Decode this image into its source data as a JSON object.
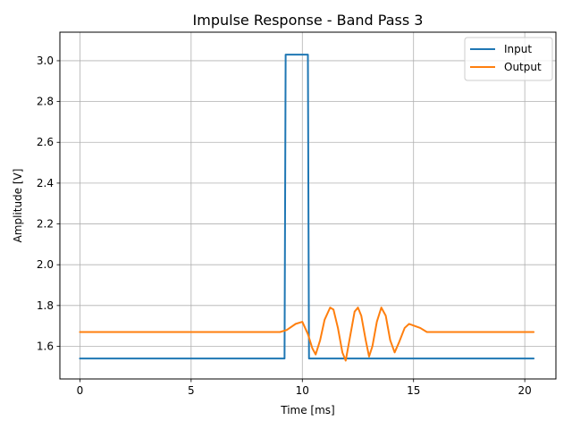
{
  "chart_data": {
    "type": "line",
    "title": "Impulse Response - Band Pass 3",
    "xlabel": "Time [ms]",
    "ylabel": "Amplitude [V]",
    "xlim": [
      -0.9,
      21.4
    ],
    "ylim": [
      1.44,
      3.14
    ],
    "x_ticks": [
      0,
      5,
      10,
      15,
      20
    ],
    "x_tick_labels": [
      "0",
      "5",
      "10",
      "15",
      "20"
    ],
    "y_ticks": [
      1.6,
      1.8,
      2.0,
      2.2,
      2.4,
      2.6,
      2.8,
      3.0
    ],
    "y_tick_labels": [
      "1.6",
      "1.8",
      "2.0",
      "2.2",
      "2.4",
      "2.6",
      "2.8",
      "3.0"
    ],
    "grid": true,
    "legend": {
      "position": "upper right"
    },
    "series": [
      {
        "name": "Input",
        "color": "#1f77b4",
        "points": [
          [
            0,
            1.54
          ],
          [
            9.2,
            1.54
          ],
          [
            9.25,
            3.03
          ],
          [
            10.25,
            3.03
          ],
          [
            10.3,
            1.54
          ],
          [
            20.4,
            1.54
          ]
        ]
      },
      {
        "name": "Output",
        "color": "#ff7f0e",
        "points": [
          [
            0,
            1.67
          ],
          [
            2,
            1.67
          ],
          [
            4,
            1.67
          ],
          [
            6,
            1.67
          ],
          [
            8,
            1.67
          ],
          [
            9.0,
            1.67
          ],
          [
            9.3,
            1.68
          ],
          [
            9.7,
            1.71
          ],
          [
            10.0,
            1.72
          ],
          [
            10.25,
            1.66
          ],
          [
            10.45,
            1.59
          ],
          [
            10.6,
            1.56
          ],
          [
            10.8,
            1.63
          ],
          [
            11.0,
            1.73
          ],
          [
            11.25,
            1.79
          ],
          [
            11.4,
            1.78
          ],
          [
            11.6,
            1.69
          ],
          [
            11.8,
            1.57
          ],
          [
            11.95,
            1.53
          ],
          [
            12.15,
            1.65
          ],
          [
            12.35,
            1.77
          ],
          [
            12.5,
            1.79
          ],
          [
            12.65,
            1.75
          ],
          [
            12.85,
            1.63
          ],
          [
            13.0,
            1.55
          ],
          [
            13.15,
            1.6
          ],
          [
            13.35,
            1.72
          ],
          [
            13.55,
            1.79
          ],
          [
            13.75,
            1.75
          ],
          [
            13.95,
            1.63
          ],
          [
            14.15,
            1.57
          ],
          [
            14.35,
            1.62
          ],
          [
            14.6,
            1.69
          ],
          [
            14.8,
            1.71
          ],
          [
            15.05,
            1.7
          ],
          [
            15.3,
            1.69
          ],
          [
            15.6,
            1.67
          ],
          [
            16,
            1.67
          ],
          [
            17,
            1.67
          ],
          [
            18,
            1.67
          ],
          [
            19,
            1.67
          ],
          [
            20,
            1.67
          ],
          [
            20.4,
            1.67
          ]
        ]
      }
    ]
  }
}
